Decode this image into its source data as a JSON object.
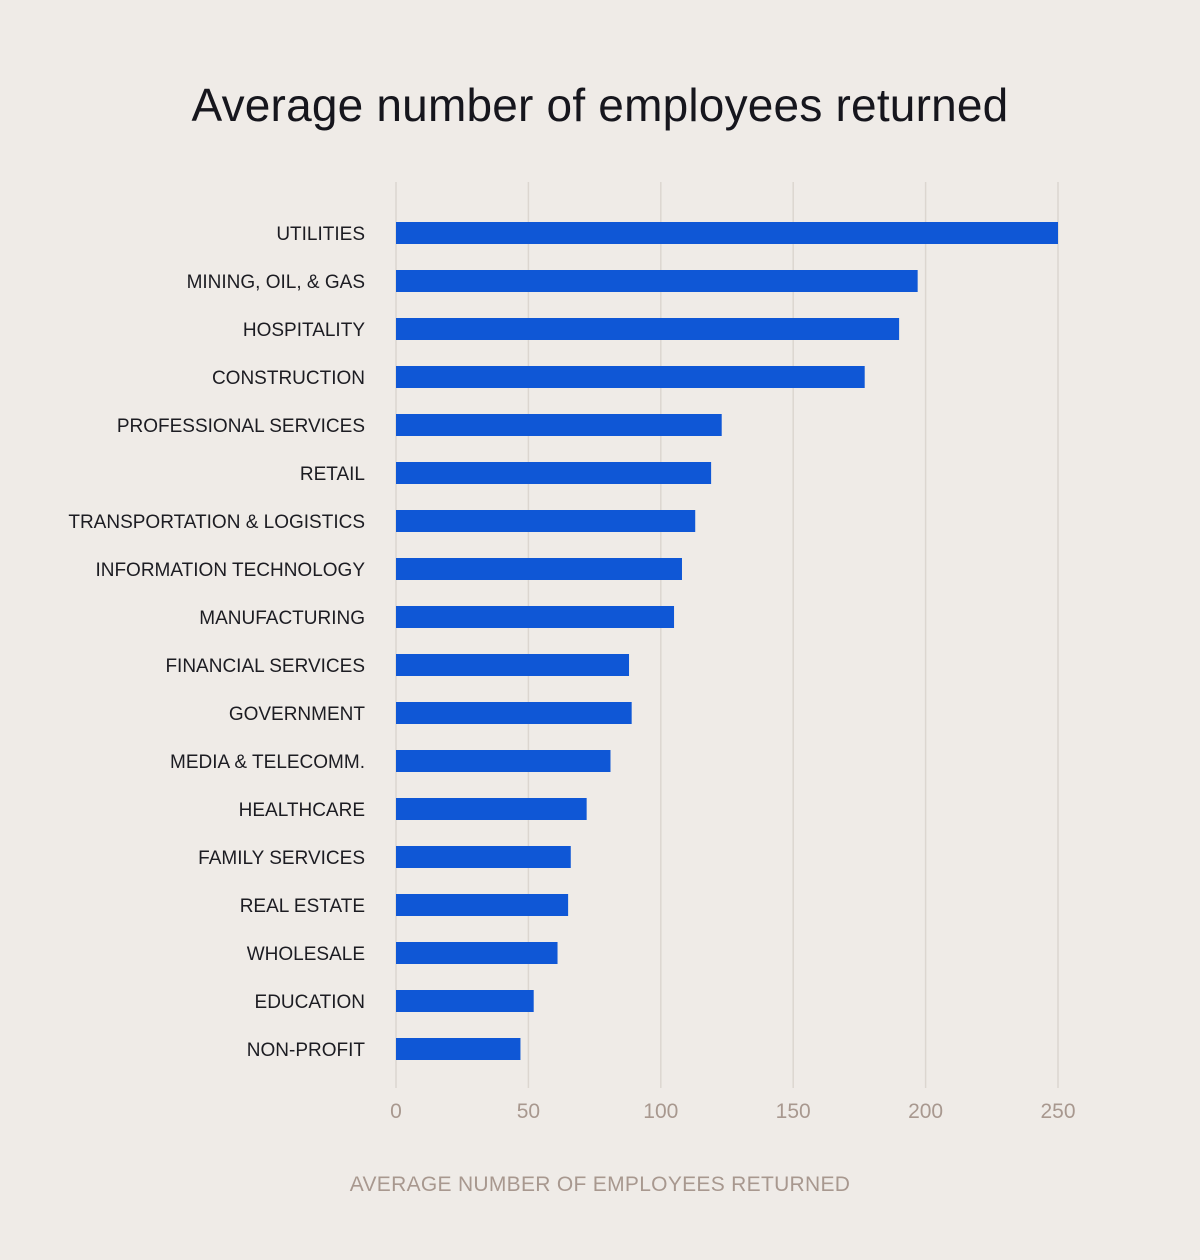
{
  "chart_data": {
    "type": "bar",
    "orientation": "horizontal",
    "title": "Average number of employees returned",
    "xlabel": "AVERAGE NUMBER OF EMPLOYEES RETURNED",
    "ylabel": "",
    "xlim": [
      0,
      250
    ],
    "xticks": [
      0,
      50,
      100,
      150,
      200,
      250
    ],
    "grid": "vertical",
    "legend": "none",
    "bar_color": "#0f57d6",
    "categories": [
      "UTILITIES",
      "MINING, OIL, & GAS",
      "HOSPITALITY",
      "CONSTRUCTION",
      "PROFESSIONAL SERVICES",
      "RETAIL",
      "TRANSPORTATION & LOGISTICS",
      "INFORMATION TECHNOLOGY",
      "MANUFACTURING",
      "FINANCIAL SERVICES",
      "GOVERNMENT",
      "MEDIA & TELECOMM.",
      "HEALTHCARE",
      "FAMILY SERVICES",
      "REAL ESTATE",
      "WHOLESALE",
      "EDUCATION",
      "NON-PROFIT"
    ],
    "values": [
      250,
      197,
      190,
      177,
      123,
      119,
      113,
      108,
      105,
      88,
      89,
      81,
      72,
      66,
      65,
      61,
      52,
      47
    ]
  }
}
